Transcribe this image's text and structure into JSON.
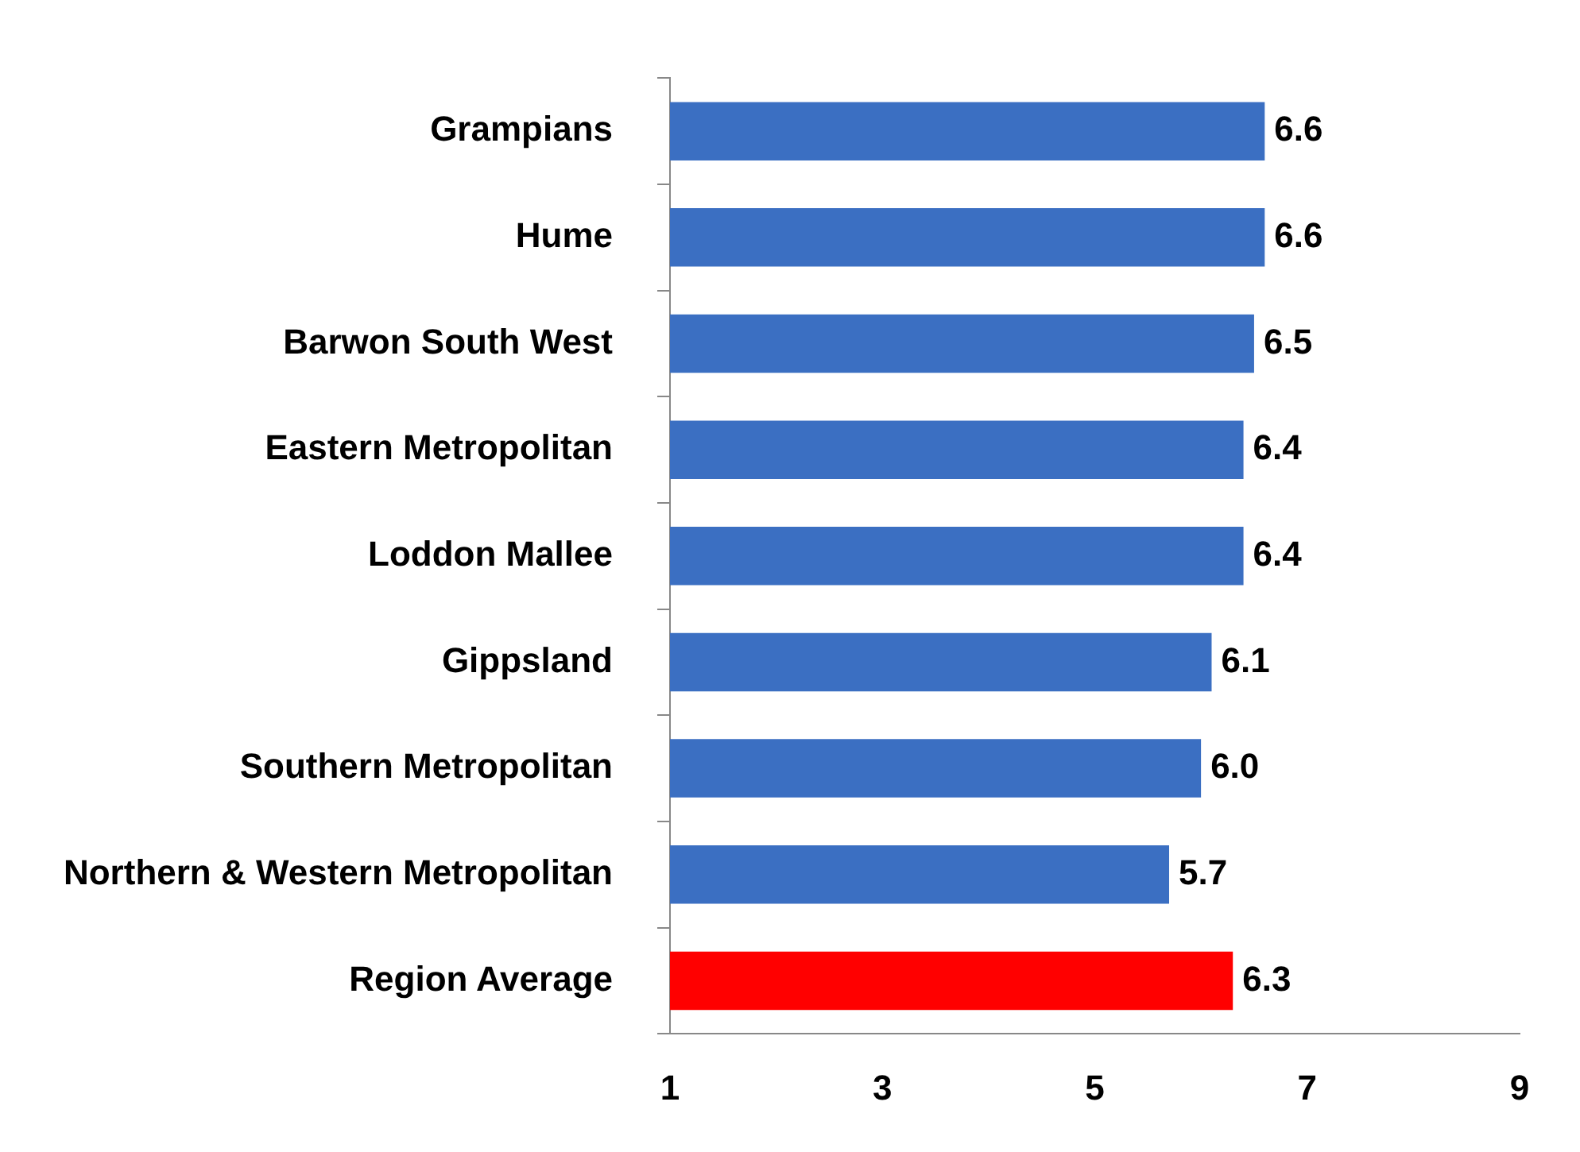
{
  "chart_data": {
    "type": "bar",
    "orientation": "horizontal",
    "categories": [
      "Grampians",
      "Hume",
      "Barwon South West",
      "Eastern Metropolitan",
      "Loddon Mallee",
      "Gippsland",
      "Southern Metropolitan",
      "Northern & Western Metropolitan",
      "Region Average"
    ],
    "values": [
      6.6,
      6.6,
      6.5,
      6.4,
      6.4,
      6.1,
      6.0,
      5.7,
      6.3
    ],
    "value_labels": [
      "6.6",
      "6.6",
      "6.5",
      "6.4",
      "6.4",
      "6.1",
      "6.0",
      "5.7",
      "6.3"
    ],
    "colors": [
      "#3b6fc2",
      "#3b6fc2",
      "#3b6fc2",
      "#3b6fc2",
      "#3b6fc2",
      "#3b6fc2",
      "#3b6fc2",
      "#3b6fc2",
      "#ff0000"
    ],
    "xlim": [
      1,
      9
    ],
    "xticks": [
      1,
      3,
      5,
      7,
      9
    ],
    "grid": false,
    "legend": false
  }
}
